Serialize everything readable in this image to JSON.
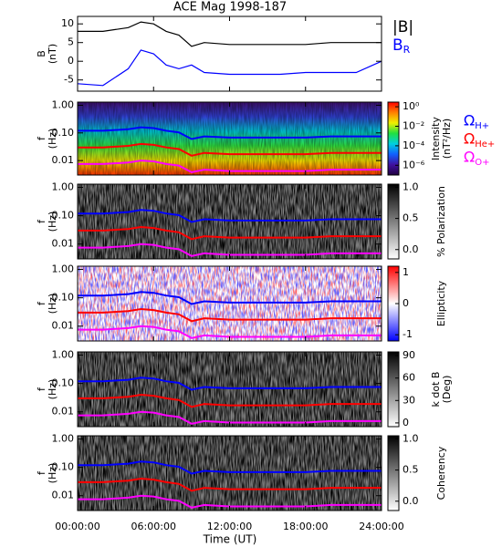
{
  "title": "ACE Mag 1998-187",
  "x_axis": {
    "label": "Time (UT)",
    "xlim": [
      0,
      24
    ],
    "xticks": [
      {
        "value": 0,
        "label": "00:00:00"
      },
      {
        "value": 6,
        "label": "06:00:00"
      },
      {
        "value": 12,
        "label": "12:00:00"
      },
      {
        "value": 18,
        "label": "18:00:00"
      },
      {
        "value": 24,
        "label": "24:00:00"
      }
    ],
    "x": [
      0,
      2,
      4,
      5,
      6,
      7,
      8,
      9,
      10,
      12,
      14,
      16,
      18,
      20,
      22,
      24
    ]
  },
  "chart_data": [
    {
      "type": "line",
      "ylabel": [
        "B",
        "(nT)"
      ],
      "ylim": [
        -8,
        12
      ],
      "yticks": [
        -5,
        0,
        5,
        10
      ],
      "series": [
        {
          "name": "|B|",
          "color": "#000000",
          "values": [
            8,
            8,
            9,
            10.5,
            10,
            8,
            7,
            4,
            5,
            4.5,
            4.5,
            4.5,
            4.5,
            5,
            5,
            5
          ]
        },
        {
          "name": "BR",
          "color": "#0000ff",
          "values": [
            -6,
            -6.5,
            -2,
            3,
            2,
            -1,
            -2,
            -1,
            -3,
            -3.5,
            -3.5,
            -3.5,
            -3,
            -3,
            -3,
            0
          ]
        }
      ]
    },
    {
      "type": "spectrogram",
      "colormap": "rainbow",
      "ylabel": [
        "f",
        "(Hz)"
      ],
      "log": true,
      "ylim": [
        0.003,
        1.3
      ],
      "yticks": [
        {
          "value": 1,
          "label": "1.00"
        },
        {
          "value": 0.1,
          "label": "0.10"
        },
        {
          "value": 0.01,
          "label": "0.01"
        }
      ],
      "colorbar": {
        "label": [
          "Intensity",
          "(nT²/Hz)"
        ],
        "log": true,
        "clim": [
          1e-07,
          3
        ],
        "ticks": [
          {
            "value": 1,
            "label": "10⁰"
          },
          {
            "value": 0.01,
            "label": "10⁻²"
          },
          {
            "value": 0.0001,
            "label": "10⁻⁴"
          },
          {
            "value": 1e-06,
            "label": "10⁻⁶"
          }
        ]
      },
      "legend": true,
      "series": [
        {
          "name": "ΩH+",
          "color": "#0000ff",
          "values": [
            0.12,
            0.12,
            0.135,
            0.16,
            0.15,
            0.12,
            0.105,
            0.06,
            0.075,
            0.068,
            0.068,
            0.068,
            0.068,
            0.075,
            0.075,
            0.075
          ]
        },
        {
          "name": "ΩHe+",
          "color": "#ff0000",
          "values": [
            0.03,
            0.03,
            0.034,
            0.04,
            0.037,
            0.03,
            0.026,
            0.015,
            0.019,
            0.017,
            0.017,
            0.017,
            0.017,
            0.019,
            0.019,
            0.019
          ]
        },
        {
          "name": "ΩO+",
          "color": "#ff00ff",
          "values": [
            0.0075,
            0.0075,
            0.0085,
            0.01,
            0.0094,
            0.0075,
            0.0066,
            0.0038,
            0.0047,
            0.0042,
            0.0042,
            0.0042,
            0.0042,
            0.0047,
            0.0047,
            0.0047
          ]
        }
      ]
    },
    {
      "type": "spectrogram",
      "colormap": "gray",
      "ylabel": [
        "f",
        "(Hz)"
      ],
      "log": true,
      "ylim": [
        0.003,
        1.3
      ],
      "yticks": [
        {
          "value": 1,
          "label": "1.00"
        },
        {
          "value": 0.1,
          "label": "0.10"
        },
        {
          "value": 0.01,
          "label": "0.01"
        }
      ],
      "colorbar": {
        "label": [
          "% Polarization"
        ],
        "clim": [
          -0.15,
          1.05
        ],
        "ticks": [
          {
            "value": 1,
            "label": "1.0"
          },
          {
            "value": 0.5,
            "label": "0.5"
          },
          {
            "value": 0,
            "label": "0.0"
          }
        ]
      },
      "series": [
        {
          "color": "#0000ff",
          "values": [
            0.12,
            0.12,
            0.135,
            0.16,
            0.15,
            0.12,
            0.105,
            0.06,
            0.075,
            0.068,
            0.068,
            0.068,
            0.068,
            0.075,
            0.075,
            0.075
          ]
        },
        {
          "color": "#ff0000",
          "values": [
            0.03,
            0.03,
            0.034,
            0.04,
            0.037,
            0.03,
            0.026,
            0.015,
            0.019,
            0.017,
            0.017,
            0.017,
            0.017,
            0.019,
            0.019,
            0.019
          ]
        },
        {
          "color": "#ff00ff",
          "values": [
            0.0075,
            0.0075,
            0.0085,
            0.01,
            0.0094,
            0.0075,
            0.0066,
            0.0038,
            0.0047,
            0.0042,
            0.0042,
            0.0042,
            0.0042,
            0.0047,
            0.0047,
            0.0047
          ]
        }
      ]
    },
    {
      "type": "spectrogram",
      "colormap": "bwr",
      "ylabel": [
        "f",
        "(Hz)"
      ],
      "log": true,
      "ylim": [
        0.003,
        1.3
      ],
      "yticks": [
        {
          "value": 1,
          "label": "1.00"
        },
        {
          "value": 0.1,
          "label": "0.10"
        },
        {
          "value": 0.01,
          "label": "0.01"
        }
      ],
      "colorbar": {
        "label": [
          "Ellipticity"
        ],
        "clim": [
          -1.2,
          1.2
        ],
        "ticks": [
          1,
          0,
          -1
        ]
      },
      "series": [
        {
          "color": "#0000ff",
          "values": [
            0.12,
            0.12,
            0.135,
            0.16,
            0.15,
            0.12,
            0.105,
            0.06,
            0.075,
            0.068,
            0.068,
            0.068,
            0.068,
            0.075,
            0.075,
            0.075
          ]
        },
        {
          "color": "#ff0000",
          "values": [
            0.03,
            0.03,
            0.034,
            0.04,
            0.037,
            0.03,
            0.026,
            0.015,
            0.019,
            0.017,
            0.017,
            0.017,
            0.017,
            0.019,
            0.019,
            0.019
          ]
        },
        {
          "color": "#ff00ff",
          "values": [
            0.0075,
            0.0075,
            0.0085,
            0.01,
            0.0094,
            0.0075,
            0.0066,
            0.0038,
            0.0047,
            0.0042,
            0.0042,
            0.0042,
            0.0042,
            0.0047,
            0.0047,
            0.0047
          ]
        }
      ]
    },
    {
      "type": "spectrogram",
      "colormap": "gray",
      "ylabel": [
        "f",
        "(Hz)"
      ],
      "log": true,
      "ylim": [
        0.003,
        1.3
      ],
      "yticks": [
        {
          "value": 1,
          "label": "1.00"
        },
        {
          "value": 0.1,
          "label": "0.10"
        },
        {
          "value": 0.01,
          "label": "0.01"
        }
      ],
      "colorbar": {
        "label": [
          "k dot B",
          "(Deg)"
        ],
        "clim": [
          -5,
          95
        ],
        "ticks": [
          90,
          60,
          30,
          0
        ]
      },
      "series": [
        {
          "color": "#0000ff",
          "values": [
            0.12,
            0.12,
            0.135,
            0.16,
            0.15,
            0.12,
            0.105,
            0.06,
            0.075,
            0.068,
            0.068,
            0.068,
            0.068,
            0.075,
            0.075,
            0.075
          ]
        },
        {
          "color": "#ff0000",
          "values": [
            0.03,
            0.03,
            0.034,
            0.04,
            0.037,
            0.03,
            0.026,
            0.015,
            0.019,
            0.017,
            0.017,
            0.017,
            0.017,
            0.019,
            0.019,
            0.019
          ]
        },
        {
          "color": "#ff00ff",
          "values": [
            0.0075,
            0.0075,
            0.0085,
            0.01,
            0.0094,
            0.0075,
            0.0066,
            0.0038,
            0.0047,
            0.0042,
            0.0042,
            0.0042,
            0.0042,
            0.0047,
            0.0047,
            0.0047
          ]
        }
      ]
    },
    {
      "type": "spectrogram",
      "colormap": "gray",
      "ylabel": [
        "f",
        "(Hz)"
      ],
      "log": true,
      "ylim": [
        0.003,
        1.3
      ],
      "yticks": [
        {
          "value": 1,
          "label": "1.00"
        },
        {
          "value": 0.1,
          "label": "0.10"
        },
        {
          "value": 0.01,
          "label": "0.01"
        }
      ],
      "colorbar": {
        "label": [
          "Coherency"
        ],
        "clim": [
          -0.15,
          1.05
        ],
        "ticks": [
          {
            "value": 1,
            "label": "1.0"
          },
          {
            "value": 0.5,
            "label": "0.5"
          },
          {
            "value": 0,
            "label": "0.0"
          }
        ]
      },
      "series": [
        {
          "color": "#0000ff",
          "values": [
            0.12,
            0.12,
            0.135,
            0.16,
            0.15,
            0.12,
            0.105,
            0.06,
            0.075,
            0.068,
            0.068,
            0.068,
            0.068,
            0.075,
            0.075,
            0.075
          ]
        },
        {
          "color": "#ff0000",
          "values": [
            0.03,
            0.03,
            0.034,
            0.04,
            0.037,
            0.03,
            0.026,
            0.015,
            0.019,
            0.017,
            0.017,
            0.017,
            0.017,
            0.019,
            0.019,
            0.019
          ]
        },
        {
          "color": "#ff00ff",
          "values": [
            0.0075,
            0.0075,
            0.0085,
            0.01,
            0.0094,
            0.0075,
            0.0066,
            0.0038,
            0.0047,
            0.0042,
            0.0042,
            0.0042,
            0.0042,
            0.0047,
            0.0047,
            0.0047
          ]
        }
      ]
    }
  ]
}
